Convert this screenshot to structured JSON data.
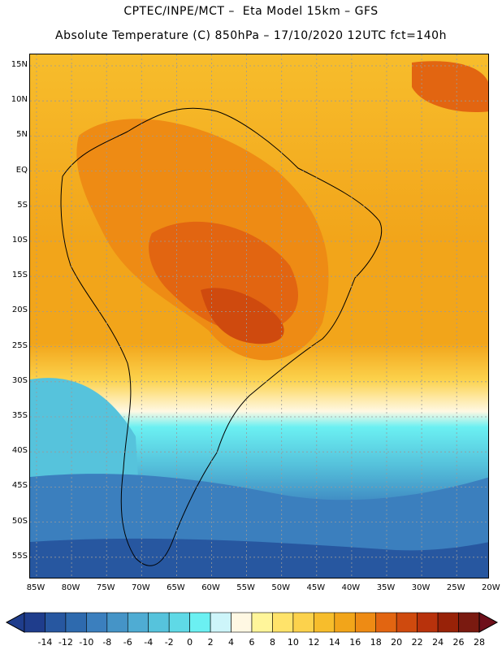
{
  "header": {
    "title_line1": "CPTEC/INPE/MCT –  Eta Model 15km – GFS",
    "title_line2": "Absolute Temperature (C) 850hPa – 17/10/2020 12UTC fct=140h"
  },
  "map": {
    "lat_labels": [
      "15N",
      "10N",
      "5N",
      "EQ",
      "5S",
      "10S",
      "15S",
      "20S",
      "25S",
      "30S",
      "35S",
      "40S",
      "45S",
      "50S",
      "55S"
    ],
    "lon_labels": [
      "85W",
      "80W",
      "75W",
      "70W",
      "65W",
      "60W",
      "55W",
      "50W",
      "45W",
      "40W",
      "35W",
      "30W",
      "25W",
      "20W"
    ],
    "land_outline_color": "#000000",
    "grid_color": "#9a9a9a"
  },
  "colorbar": {
    "labels": [
      "-14",
      "-12",
      "-10",
      "-8",
      "-6",
      "-4",
      "-2",
      "0",
      "2",
      "4",
      "6",
      "8",
      "10",
      "12",
      "14",
      "16",
      "18",
      "20",
      "22",
      "24",
      "26",
      "28"
    ],
    "colors": [
      "#1f3d8c",
      "#2757a0",
      "#2e6aae",
      "#3b7fbe",
      "#4594c7",
      "#4facd3",
      "#56c3dc",
      "#5fd9e6",
      "#6bf0f2",
      "#cdf5fa",
      "#fff8e3",
      "#fff59a",
      "#ffe36a",
      "#fcd24c",
      "#f7bd2c",
      "#f2a51a",
      "#ee8b14",
      "#e26511",
      "#cf4a0e",
      "#b8320c",
      "#982208",
      "#7a1a10"
    ]
  }
}
